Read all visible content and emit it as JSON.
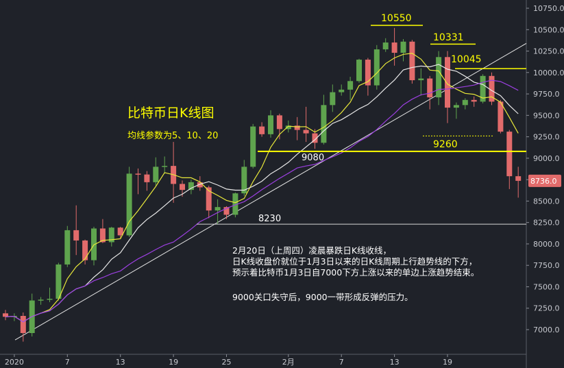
{
  "chart_data": {
    "type": "candlestick",
    "title": "比特币日K线图",
    "subtitle": "均线参数为5、10、20",
    "x_tick_labels": [
      "2020",
      "7",
      "13",
      "19",
      "25",
      "2月",
      "7",
      "13",
      "19"
    ],
    "y_tick_labels": [
      "10750.0",
      "10500.0",
      "10250.0",
      "10000.0",
      "9750.0",
      "9500.0",
      "9250.0",
      "9000.0",
      "8750.0",
      "8500.0",
      "8250.0",
      "8000.0",
      "7750.0",
      "7500.0",
      "7250.0",
      "7000.0"
    ],
    "ylim": [
      6850,
      10780
    ],
    "current_price_label": "8736.0",
    "price_levels": [
      {
        "label": "10550",
        "value": 10550
      },
      {
        "label": "10331",
        "value": 10331
      },
      {
        "label": "10045",
        "value": 10045
      },
      {
        "label": "9260",
        "value": 9260
      },
      {
        "label": "9080",
        "value": 9080
      },
      {
        "label": "8230",
        "value": 8230
      }
    ],
    "annotation_lines": [
      "2月20日（上周四）凌晨暴跌日K线收线，",
      "日K线收盘价就位于1月3日以来的日K线周期上行趋势线的下方，",
      "预示着比特币1月3日自7000下方上涨以来的单边上涨趋势结束。",
      "",
      "9000关口失守后，9000一带形成反弹的压力。"
    ],
    "candles": [
      {
        "d": "2019-12-31",
        "o": 7190,
        "h": 7230,
        "l": 7110,
        "c": 7150
      },
      {
        "d": "2020-01-01",
        "o": 7150,
        "h": 7190,
        "l": 7100,
        "c": 7160
      },
      {
        "d": "2020-01-02",
        "o": 7160,
        "h": 7200,
        "l": 6860,
        "c": 6960
      },
      {
        "d": "2020-01-03",
        "o": 6960,
        "h": 7420,
        "l": 6920,
        "c": 7340
      },
      {
        "d": "2020-01-04",
        "o": 7340,
        "h": 7380,
        "l": 7290,
        "c": 7350
      },
      {
        "d": "2020-01-05",
        "o": 7350,
        "h": 7490,
        "l": 7320,
        "c": 7360
      },
      {
        "d": "2020-01-06",
        "o": 7360,
        "h": 7780,
        "l": 7340,
        "c": 7760
      },
      {
        "d": "2020-01-07",
        "o": 7760,
        "h": 8210,
        "l": 7730,
        "c": 8160
      },
      {
        "d": "2020-01-08",
        "o": 8160,
        "h": 8450,
        "l": 7870,
        "c": 8040
      },
      {
        "d": "2020-01-09",
        "o": 8040,
        "h": 8050,
        "l": 7760,
        "c": 7810
      },
      {
        "d": "2020-01-10",
        "o": 7810,
        "h": 8200,
        "l": 7750,
        "c": 8180
      },
      {
        "d": "2020-01-11",
        "o": 8180,
        "h": 8290,
        "l": 8010,
        "c": 8020
      },
      {
        "d": "2020-01-12",
        "o": 8020,
        "h": 8200,
        "l": 7970,
        "c": 8190
      },
      {
        "d": "2020-01-13",
        "o": 8190,
        "h": 8200,
        "l": 8070,
        "c": 8100
      },
      {
        "d": "2020-01-14",
        "o": 8100,
        "h": 8900,
        "l": 8080,
        "c": 8820
      },
      {
        "d": "2020-01-15",
        "o": 8820,
        "h": 8880,
        "l": 8580,
        "c": 8810
      },
      {
        "d": "2020-01-16",
        "o": 8810,
        "h": 8850,
        "l": 8620,
        "c": 8720
      },
      {
        "d": "2020-01-17",
        "o": 8720,
        "h": 9010,
        "l": 8680,
        "c": 8900
      },
      {
        "d": "2020-01-18",
        "o": 8900,
        "h": 9020,
        "l": 8820,
        "c": 8910
      },
      {
        "d": "2020-01-19",
        "o": 8910,
        "h": 9190,
        "l": 8480,
        "c": 8700
      },
      {
        "d": "2020-01-20",
        "o": 8700,
        "h": 8740,
        "l": 8550,
        "c": 8630
      },
      {
        "d": "2020-01-21",
        "o": 8630,
        "h": 8750,
        "l": 8580,
        "c": 8720
      },
      {
        "d": "2020-01-22",
        "o": 8720,
        "h": 8790,
        "l": 8620,
        "c": 8660
      },
      {
        "d": "2020-01-23",
        "o": 8660,
        "h": 8680,
        "l": 8300,
        "c": 8390
      },
      {
        "d": "2020-01-24",
        "o": 8390,
        "h": 8520,
        "l": 8230,
        "c": 8430
      },
      {
        "d": "2020-01-25",
        "o": 8430,
        "h": 8440,
        "l": 8290,
        "c": 8340
      },
      {
        "d": "2020-01-26",
        "o": 8340,
        "h": 8600,
        "l": 8310,
        "c": 8590
      },
      {
        "d": "2020-01-27",
        "o": 8590,
        "h": 8980,
        "l": 8560,
        "c": 8900
      },
      {
        "d": "2020-01-28",
        "o": 8900,
        "h": 9400,
        "l": 8880,
        "c": 9370
      },
      {
        "d": "2020-01-29",
        "o": 9370,
        "h": 9420,
        "l": 9250,
        "c": 9280
      },
      {
        "d": "2020-01-30",
        "o": 9280,
        "h": 9560,
        "l": 9240,
        "c": 9500
      },
      {
        "d": "2020-01-31",
        "o": 9500,
        "h": 9520,
        "l": 9220,
        "c": 9340
      },
      {
        "d": "2020-02-01",
        "o": 9340,
        "h": 9440,
        "l": 9300,
        "c": 9380
      },
      {
        "d": "2020-02-02",
        "o": 9380,
        "h": 9480,
        "l": 9210,
        "c": 9330
      },
      {
        "d": "2020-02-03",
        "o": 9330,
        "h": 9600,
        "l": 9190,
        "c": 9290
      },
      {
        "d": "2020-02-04",
        "o": 9290,
        "h": 9340,
        "l": 9110,
        "c": 9180
      },
      {
        "d": "2020-02-05",
        "o": 9180,
        "h": 9740,
        "l": 9160,
        "c": 9620
      },
      {
        "d": "2020-02-06",
        "o": 9620,
        "h": 9860,
        "l": 9540,
        "c": 9770
      },
      {
        "d": "2020-02-07",
        "o": 9770,
        "h": 9860,
        "l": 9730,
        "c": 9800
      },
      {
        "d": "2020-02-08",
        "o": 9800,
        "h": 9950,
        "l": 9680,
        "c": 9900
      },
      {
        "d": "2020-02-09",
        "o": 9900,
        "h": 10160,
        "l": 9880,
        "c": 10150
      },
      {
        "d": "2020-02-10",
        "o": 10150,
        "h": 10170,
        "l": 9730,
        "c": 9850
      },
      {
        "d": "2020-02-11",
        "o": 9850,
        "h": 10320,
        "l": 9800,
        "c": 10270
      },
      {
        "d": "2020-02-12",
        "o": 10270,
        "h": 10400,
        "l": 10240,
        "c": 10350
      },
      {
        "d": "2020-02-13",
        "o": 10350,
        "h": 10520,
        "l": 10080,
        "c": 10230
      },
      {
        "d": "2020-02-14",
        "o": 10230,
        "h": 10390,
        "l": 10130,
        "c": 10360
      },
      {
        "d": "2020-02-15",
        "o": 10360,
        "h": 10380,
        "l": 9870,
        "c": 9910
      },
      {
        "d": "2020-02-16",
        "o": 9910,
        "h": 10050,
        "l": 9730,
        "c": 9930
      },
      {
        "d": "2020-02-17",
        "o": 9930,
        "h": 9960,
        "l": 9570,
        "c": 9710
      },
      {
        "d": "2020-02-18",
        "o": 9710,
        "h": 10250,
        "l": 9620,
        "c": 10180
      },
      {
        "d": "2020-02-19",
        "o": 10180,
        "h": 10250,
        "l": 9410,
        "c": 9590
      },
      {
        "d": "2020-02-20",
        "o": 9590,
        "h": 9650,
        "l": 9460,
        "c": 9620
      },
      {
        "d": "2020-02-21",
        "o": 9620,
        "h": 9700,
        "l": 9570,
        "c": 9680
      },
      {
        "d": "2020-02-22",
        "o": 9680,
        "h": 9720,
        "l": 9600,
        "c": 9660
      },
      {
        "d": "2020-02-23",
        "o": 9660,
        "h": 9980,
        "l": 9640,
        "c": 9960
      },
      {
        "d": "2020-02-24",
        "o": 9960,
        "h": 10000,
        "l": 9620,
        "c": 9660
      },
      {
        "d": "2020-02-25",
        "o": 9660,
        "h": 9680,
        "l": 9290,
        "c": 9310
      },
      {
        "d": "2020-02-26",
        "o": 9310,
        "h": 9330,
        "l": 8640,
        "c": 8790
      },
      {
        "d": "2020-02-27",
        "o": 8790,
        "h": 8900,
        "l": 8540,
        "c": 8736
      }
    ],
    "moving_averages": [
      {
        "name": "5",
        "period": 5,
        "color": "#e8e83a"
      },
      {
        "name": "10",
        "period": 10,
        "color": "#e8e8e8"
      },
      {
        "name": "20",
        "period": 20,
        "color": "#9b3fe0"
      }
    ],
    "up_color": "#5fa44e",
    "down_color": "#e26b6b",
    "level_color": "#ffff00",
    "background": "#1f2229",
    "grid": false
  }
}
